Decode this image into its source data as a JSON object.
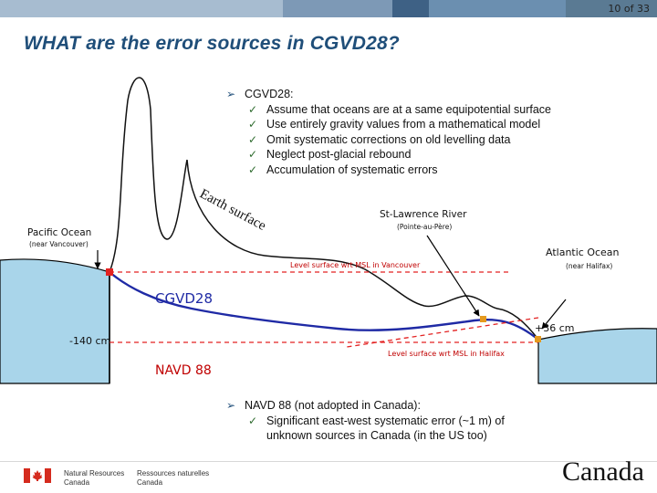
{
  "slide": {
    "number_label": "10 of 33"
  },
  "title": "WHAT are the error sources in CGVD28?",
  "cgvd_block": {
    "heading": "CGVD28:",
    "items": [
      "Assume that oceans are at a same equipotential surface",
      "Use entirely gravity values from a mathematical model",
      "Omit systematic corrections on old levelling data",
      "Neglect post-glacial rebound",
      "Accumulation of systematic errors"
    ]
  },
  "navd_block": {
    "heading": "NAVD 88 (not adopted in Canada):",
    "items": [
      "Significant east-west systematic error (~1 m) of unknown sources in Canada (in the US too)"
    ]
  },
  "diagram": {
    "earth_surface": "Earth surface",
    "pacific": {
      "name": "Pacific Ocean",
      "note": "(near Vancouver)"
    },
    "atlantic": {
      "name": "Atlantic Ocean",
      "note": "(near Halifax)"
    },
    "st_lawrence": {
      "name": "St-Lawrence River",
      "note": "(Pointe-au-Père)"
    },
    "level_vancouver": "Level surface wrt MSL in Vancouver",
    "level_halifax": "Level surface wrt MSL in Halifax",
    "cgvd28": "CGVD28",
    "navd88": "NAVD 88",
    "minus140": "-140 cm",
    "plus36": "+36 cm"
  },
  "footer": {
    "dept_en": [
      "Natural Resources",
      "Canada"
    ],
    "dept_fr": [
      "Ressources naturelles",
      "Canada"
    ],
    "wordmark": "Canada"
  },
  "colors": {
    "title": "#1f4e79",
    "water": "#a9d5ea",
    "cgvd_line": "#1f2aa5",
    "dashed": "#e32222",
    "topbar": [
      "#a7bcd0",
      "#7d99b6",
      "#3e6185",
      "#6b8fb0",
      "#5a7a93"
    ]
  },
  "icons": [
    "maple-leaf-flag-icon",
    "arrow-bullet-icon",
    "checkmark-icon"
  ]
}
